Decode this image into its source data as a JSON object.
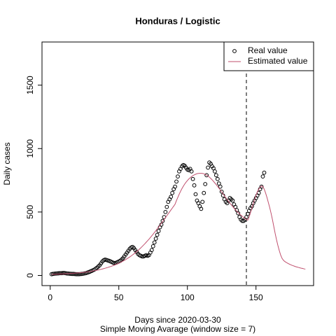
{
  "chart_data": {
    "type": "scatter_line",
    "title": "Honduras / Logistic",
    "xlabel": "Days since 2020-03-30",
    "subtitle": "Simple Moving Avarage (window size = 7)",
    "ylabel": "Daily cases",
    "xlim": [
      -6,
      192
    ],
    "xticks": [
      0,
      50,
      100,
      150
    ],
    "ylim": [
      -80,
      1840
    ],
    "yticks": [
      0,
      500,
      1000,
      1500
    ],
    "vline": 143,
    "legend": "top-right",
    "series": [
      {
        "name": "Real value",
        "color": "#000000",
        "x": [
          1,
          2,
          3,
          4,
          5,
          6,
          7,
          8,
          9,
          10,
          11,
          12,
          13,
          14,
          15,
          16,
          17,
          18,
          19,
          20,
          21,
          22,
          23,
          24,
          25,
          26,
          27,
          28,
          29,
          30,
          31,
          32,
          33,
          34,
          35,
          36,
          37,
          38,
          39,
          40,
          41,
          42,
          43,
          44,
          45,
          46,
          47,
          48,
          49,
          50,
          51,
          52,
          53,
          54,
          55,
          56,
          57,
          58,
          59,
          60,
          61,
          62,
          63,
          64,
          65,
          66,
          67,
          68,
          69,
          70,
          71,
          72,
          73,
          74,
          75,
          76,
          77,
          78,
          79,
          80,
          81,
          82,
          83,
          84,
          85,
          86,
          87,
          88,
          89,
          90,
          91,
          92,
          93,
          94,
          95,
          96,
          97,
          98,
          99,
          100,
          101,
          102,
          103,
          104,
          105,
          106,
          107,
          108,
          109,
          110,
          111,
          112,
          113,
          114,
          115,
          116,
          117,
          118,
          119,
          120,
          121,
          122,
          123,
          124,
          125,
          126,
          127,
          128,
          129,
          130,
          131,
          132,
          133,
          134,
          135,
          136,
          137,
          138,
          139,
          140,
          141,
          142,
          143,
          144,
          145,
          146,
          147,
          148,
          149,
          150,
          151,
          152,
          153,
          154,
          155,
          156
        ],
        "values": [
          10,
          12,
          14,
          15,
          16,
          17,
          18,
          18,
          19,
          20,
          18,
          16,
          15,
          14,
          13,
          12,
          12,
          11,
          10,
          10,
          10,
          11,
          12,
          14,
          16,
          18,
          22,
          26,
          30,
          35,
          40,
          45,
          52,
          60,
          70,
          80,
          95,
          110,
          120,
          125,
          122,
          118,
          115,
          110,
          105,
          100,
          98,
          100,
          105,
          110,
          115,
          125,
          135,
          150,
          165,
          180,
          195,
          210,
          220,
          225,
          215,
          200,
          185,
          170,
          160,
          155,
          150,
          150,
          155,
          160,
          155,
          160,
          180,
          200,
          230,
          260,
          290,
          320,
          350,
          380,
          400,
          430,
          460,
          500,
          540,
          580,
          600,
          620,
          650,
          680,
          700,
          740,
          780,
          820,
          840,
          860,
          870,
          865,
          850,
          835,
          830,
          840,
          820,
          760,
          710,
          640,
          590,
          570,
          545,
          525,
          580,
          650,
          720,
          790,
          850,
          890,
          880,
          860,
          845,
          820,
          790,
          760,
          725,
          700,
          660,
          630,
          600,
          580,
          570,
          590,
          610,
          600,
          590,
          560,
          540,
          515,
          490,
          460,
          440,
          430,
          430,
          440,
          460,
          485,
          510,
          530,
          545,
          570,
          590,
          610,
          630,
          650,
          680,
          700,
          780,
          810
        ]
      },
      {
        "name": "Estimated value",
        "color": "#c0506e",
        "x": [
          1,
          2,
          3,
          4,
          5,
          6,
          7,
          8,
          9,
          10,
          11,
          12,
          13,
          14,
          15,
          16,
          17,
          18,
          19,
          20,
          21,
          22,
          23,
          24,
          25,
          26,
          27,
          28,
          29,
          30,
          31,
          32,
          33,
          34,
          35,
          36,
          37,
          38,
          39,
          40,
          41,
          42,
          43,
          44,
          45,
          46,
          47,
          48,
          49,
          50,
          51,
          52,
          53,
          54,
          55,
          56,
          57,
          58,
          59,
          60,
          61,
          62,
          63,
          64,
          65,
          66,
          67,
          68,
          69,
          70,
          71,
          72,
          73,
          74,
          75,
          76,
          77,
          78,
          79,
          80,
          81,
          82,
          83,
          84,
          85,
          86,
          87,
          88,
          89,
          90,
          91,
          92,
          93,
          94,
          95,
          96,
          97,
          98,
          99,
          100,
          101,
          102,
          103,
          104,
          105,
          106,
          107,
          108,
          109,
          110,
          111,
          112,
          113,
          114,
          115,
          116,
          117,
          118,
          119,
          120,
          121,
          122,
          123,
          124,
          125,
          126,
          127,
          128,
          129,
          130,
          131,
          132,
          133,
          134,
          135,
          136,
          137,
          138,
          139,
          140,
          141,
          142,
          143,
          144,
          145,
          146,
          147,
          148,
          149,
          150,
          151,
          152,
          153,
          154,
          155,
          156,
          157,
          158,
          159,
          160,
          161,
          162,
          163,
          164,
          165,
          166,
          167,
          168,
          169,
          170,
          171,
          172,
          173,
          174,
          175,
          176,
          177,
          178,
          179,
          180,
          181,
          182,
          183,
          184,
          185,
          186
        ],
        "values": [
          8,
          9,
          9,
          10,
          10,
          11,
          11,
          12,
          12,
          13,
          13,
          14,
          14,
          15,
          16,
          16,
          17,
          18,
          19,
          20,
          21,
          22,
          23,
          24,
          25,
          27,
          28,
          30,
          31,
          33,
          35,
          37,
          39,
          41,
          43,
          46,
          48,
          51,
          54,
          57,
          60,
          63,
          67,
          70,
          74,
          78,
          82,
          87,
          91,
          96,
          101,
          107,
          113,
          119,
          125,
          132,
          139,
          146,
          154,
          162,
          170,
          179,
          188,
          197,
          207,
          217,
          228,
          239,
          250,
          262,
          274,
          286,
          299,
          312,
          325,
          339,
          353,
          367,
          381,
          396,
          411,
          426,
          441,
          456,
          471,
          486,
          501,
          516,
          531,
          546,
          561,
          590,
          615,
          640,
          663,
          684,
          703,
          720,
          735,
          748,
          760,
          770,
          779,
          787,
          793,
          798,
          802,
          804,
          805,
          805,
          804,
          801,
          797,
          791,
          784,
          775,
          765,
          754,
          742,
          729,
          716,
          702,
          688,
          673,
          658,
          643,
          628,
          613,
          598,
          584,
          570,
          556,
          543,
          530,
          518,
          506,
          495,
          485,
          475,
          466,
          457,
          449,
          442,
          436,
          460,
          495,
          530,
          565,
          600,
          630,
          660,
          680,
          695,
          705,
          700,
          680,
          650,
          615,
          575,
          535,
          490,
          440,
          385,
          330,
          280,
          235,
          195,
          160,
          135,
          120,
          110,
          103,
          97,
          91,
          86,
          81,
          77,
          73,
          69,
          66,
          63,
          60,
          57,
          55,
          52,
          50
        ]
      }
    ]
  }
}
